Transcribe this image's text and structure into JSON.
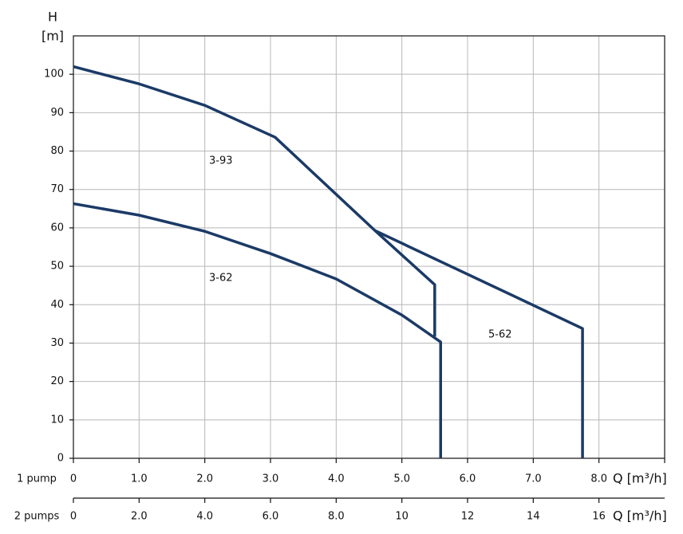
{
  "chart_data": {
    "type": "line",
    "y_label": "H",
    "y_unit": "[m]",
    "x_axis_name": "1 pump",
    "x_label": "Q [m³/h]",
    "x2_axis_name": "2 pumps",
    "x2_label": "Q [m³/h]",
    "xlim": [
      0,
      9
    ],
    "xticks": [
      0,
      {
        "value": 1,
        "label": "1.0"
      },
      {
        "value": 2,
        "label": "2.0"
      },
      {
        "value": 3,
        "label": "3.0"
      },
      {
        "value": 4,
        "label": "4.0"
      },
      {
        "value": 5,
        "label": "5.0"
      },
      {
        "value": 6,
        "label": "6.0"
      },
      {
        "value": 7,
        "label": "7.0"
      },
      {
        "value": 8,
        "label": "8.0"
      }
    ],
    "x2lim": [
      0,
      18
    ],
    "x2ticks": [
      0,
      {
        "value": 2,
        "label": "2.0"
      },
      {
        "value": 4,
        "label": "4.0"
      },
      {
        "value": 6,
        "label": "6.0"
      },
      {
        "value": 8,
        "label": "8.0"
      },
      10,
      12,
      14,
      16
    ],
    "ylim": [
      0,
      110
    ],
    "yticks": [
      0,
      10,
      20,
      30,
      40,
      50,
      60,
      70,
      80,
      90,
      100
    ],
    "grid": true,
    "series": [
      {
        "name": "3-93",
        "color": "#1b3a66",
        "x": [
          0,
          1,
          2,
          3.07,
          4.59,
          5.5,
          5.5
        ],
        "values": [
          102,
          97.5,
          91.9,
          83.6,
          59.3,
          45.2,
          31.7
        ]
      },
      {
        "name": "3-62",
        "color": "#1b3a66",
        "x": [
          0,
          1,
          2,
          3,
          4,
          5,
          5.59,
          5.59
        ],
        "values": [
          66.3,
          63.3,
          59.1,
          53.3,
          46.7,
          37.3,
          30.3,
          0
        ]
      },
      {
        "name": "5-62",
        "color": "#1b3a66",
        "x": [
          4.59,
          7.75,
          7.75
        ],
        "values": [
          59.3,
          33.8,
          0
        ]
      }
    ]
  }
}
